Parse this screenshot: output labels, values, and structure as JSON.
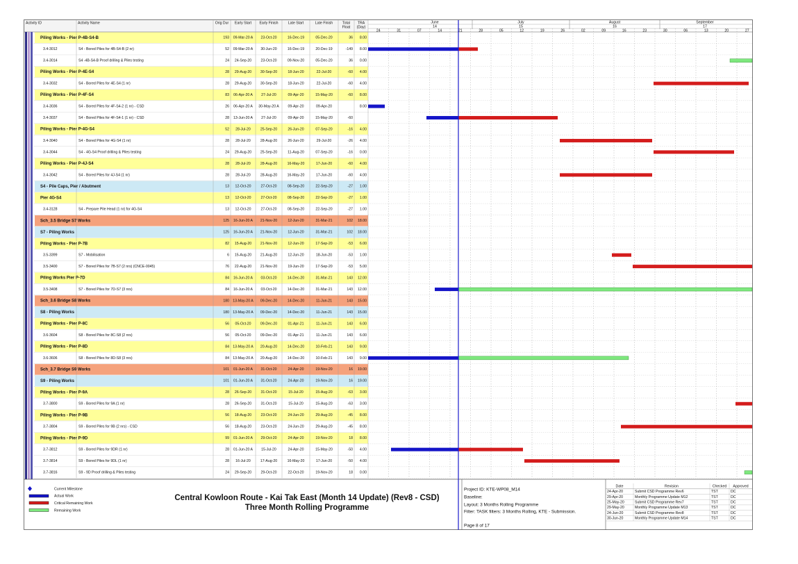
{
  "header": {
    "columns": [
      "Activity ID",
      "Activity Name",
      "Orig Dur",
      "Early Start",
      "Early Finish",
      "Late Start",
      "Late Finish",
      [
        "Total",
        "Float"
      ],
      [
        "TRA",
        "(Day)"
      ]
    ]
  },
  "timescale": {
    "months": [
      {
        "name": "June",
        "week": "14"
      },
      {
        "name": "July",
        "week": "15"
      },
      {
        "name": "August",
        "week": "16"
      },
      {
        "name": "September",
        "week": "17"
      }
    ],
    "days": [
      "24",
      "31",
      "07",
      "14",
      "21",
      "28",
      "05",
      "12",
      "19",
      "26",
      "02",
      "09",
      "16",
      "23",
      "30",
      "06",
      "13",
      "20",
      "27"
    ]
  },
  "table": {
    "rows": [
      {
        "name": "Piling Works - Pier P-4B-S4-B",
        "color": "#ffff99",
        "cells": [
          193,
          "09-Mar-20 A",
          "23-Oct-20",
          "16-Dec-19",
          "05-Dec-20",
          36,
          "8.00"
        ]
      },
      {
        "id": "3.4-3012",
        "name": "S4 - Bored Piles for 4B-S4-B (2 nr)",
        "cells": [
          52,
          "09-Mar-20 A",
          "30-Jun-20",
          "16-Dec-19",
          "20-Dec-19",
          -149,
          "8.00"
        ]
      },
      {
        "id": "3.4-3014",
        "name": "S4 -4B-S4-B Proof drilling & Piles testing",
        "cells": [
          24,
          "24-Sep-20",
          "23-Oct-20",
          "09-Nov-20",
          "05-Dec-20",
          36,
          "0.00"
        ]
      },
      {
        "name": "Piling Works - Pier P-4E-S4",
        "color": "#ffff99",
        "cells": [
          28,
          "29-Aug-20",
          "30-Sep-20",
          "18-Jun-20",
          "22-Jul-20",
          -60,
          "4.00"
        ]
      },
      {
        "id": "3.4-3032",
        "name": "S4 - Bored Piles for 4E-S4 (1 nr)",
        "cells": [
          28,
          "29-Aug-20",
          "30-Sep-20",
          "18-Jun-20",
          "22-Jul-20",
          -60,
          "4.00"
        ]
      },
      {
        "name": "Piling Works - Pier P-4F-S4",
        "color": "#ffff99",
        "cells": [
          83,
          "06-Apr-20 A",
          "27-Jul-20",
          "09-Apr-20",
          "15-May-20",
          -60,
          "8.00"
        ]
      },
      {
        "id": "3.4-3036",
        "name": "S4 - Bored Piles for 4F-S4-2 (1 nr) - CSD",
        "cells": [
          26,
          "06-Apr-20 A",
          "30-May-20 A",
          "09-Apr-20",
          "09-Apr-20",
          null,
          "8.00"
        ]
      },
      {
        "id": "3.4-3037",
        "name": "S4 - Bored Piles for 4F-S4-1 (1 nr) - CSD",
        "cells": [
          28,
          "13-Jun-20 A",
          "27-Jul-20",
          "09-Apr-20",
          "15-May-20",
          -60,
          null
        ]
      },
      {
        "name": "Piling Works - Pier P-4G-S4",
        "color": "#ffff99",
        "cells": [
          52,
          "28-Jul-20",
          "25-Sep-20",
          "26-Jun-20",
          "07-Sep-20",
          -16,
          "4.00"
        ]
      },
      {
        "id": "3.4-3040",
        "name": "S4 - Bored Piles for 4G-S4 (1 nr)",
        "cells": [
          28,
          "28-Jul-20",
          "28-Aug-20",
          "26-Jun-20",
          "29-Jul-20",
          -26,
          "4.00"
        ]
      },
      {
        "id": "3.4-3044",
        "name": "S4 - 4G-S4 Proof drilling & Piles testing",
        "cells": [
          24,
          "29-Aug-20",
          "25-Sep-20",
          "11-Aug-20",
          "07-Sep-20",
          -16,
          "0.00"
        ]
      },
      {
        "name": "Piling Works - Pier P-4J-S4",
        "color": "#ffff99",
        "cells": [
          28,
          "28-Jul-20",
          "28-Aug-20",
          "16-May-20",
          "17-Jun-20",
          -60,
          "4.00"
        ]
      },
      {
        "id": "3.4-3042",
        "name": "S4 - Bored Piles for 4J-S4 (1 nr)",
        "cells": [
          28,
          "28-Jul-20",
          "28-Aug-20",
          "16-May-20",
          "17-Jun-20",
          -60,
          "4.00"
        ]
      },
      {
        "name": "S4 - Pile Caps, Pier / Abutment",
        "color": "#cde9f5",
        "cells": [
          13,
          "12-Oct-20",
          "27-Oct-20",
          "08-Sep-20",
          "22-Sep-20",
          -27,
          "1.00"
        ]
      },
      {
        "name": "Pier 4G-S4",
        "color": "#ffff99",
        "cells": [
          13,
          "12-Oct-20",
          "27-Oct-20",
          "08-Sep-20",
          "22-Sep-20",
          -27,
          "1.00"
        ]
      },
      {
        "id": "3.4-3128",
        "name": "S4 - Prepare Pile Head (1 nr) for 4G-S4",
        "cells": [
          13,
          "12-Oct-20",
          "27-Oct-20",
          "08-Sep-20",
          "22-Sep-20",
          -27,
          "1.00"
        ]
      },
      {
        "name": "Sch_3.5 Bridge S7 Works",
        "color": "#f5a27c",
        "cells": [
          125,
          "16-Jun-20 A",
          "21-Nov-20",
          "12-Jun-20",
          "31-Mar-21",
          102,
          "18.00"
        ]
      },
      {
        "name": "S7 - Piling Works",
        "color": "#cde9f5",
        "cells": [
          125,
          "16-Jun-20 A",
          "21-Nov-20",
          "12-Jun-20",
          "31-Mar-21",
          102,
          "18.00"
        ]
      },
      {
        "name": "Piling Works - Pier P-7B",
        "color": "#ffff99",
        "cells": [
          82,
          "15-Aug-20",
          "21-Nov-20",
          "12-Jun-20",
          "17-Sep-20",
          -53,
          "6.00"
        ]
      },
      {
        "id": "3.5-3399",
        "name": "S7 - Mobilisation",
        "cells": [
          6,
          "15-Aug-20",
          "21-Aug-20",
          "12-Jun-20",
          "18-Jun-20",
          -53,
          "1.00"
        ]
      },
      {
        "id": "3.5-3400",
        "name": "S7 - Bored Piles for 7B-S7 (2 nrs) (CNCE-0045)",
        "cells": [
          76,
          "22-Aug-20",
          "21-Nov-20",
          "19-Jun-20",
          "17-Sep-20",
          -53,
          "5.00"
        ]
      },
      {
        "name": "Piling Works Pier P-7D",
        "color": "#ffff99",
        "cells": [
          84,
          "16-Jun-20 A",
          "03-Oct-20",
          "14-Dec-20",
          "31-Mar-21",
          143,
          "12.00"
        ]
      },
      {
        "id": "3.5-3408",
        "name": "S7 - Bored Piles for 7D-S7 (3 nrs)",
        "cells": [
          84,
          "16-Jun-20 A",
          "03-Oct-20",
          "14-Dec-20",
          "31-Mar-21",
          143,
          "12.00"
        ]
      },
      {
        "name": "Sch_3.6 Bridge S8 Works",
        "color": "#f5a27c",
        "cells": [
          180,
          "13-May-20 A",
          "09-Dec-20",
          "14-Dec-20",
          "11-Jun-21",
          143,
          "15.00"
        ]
      },
      {
        "name": "S8 - Piling Works",
        "color": "#cde9f5",
        "cells": [
          180,
          "13-May-20 A",
          "09-Dec-20",
          "14-Dec-20",
          "11-Jun-21",
          143,
          "15.00"
        ]
      },
      {
        "name": "Piling Works - Pier P-8C",
        "color": "#ffff99",
        "cells": [
          56,
          "05-Oct-20",
          "09-Dec-20",
          "01-Apr-21",
          "11-Jun-21",
          143,
          "6.00"
        ]
      },
      {
        "id": "3.6-3604",
        "name": "S8 - Bored Piles for 8C-S8 (2 nrs)",
        "cells": [
          56,
          "05-Oct-20",
          "09-Dec-20",
          "01-Apr-21",
          "11-Jun-21",
          143,
          "6.00"
        ]
      },
      {
        "name": "Piling Works - Pier P-8D",
        "color": "#ffff99",
        "cells": [
          84,
          "13-May-20 A",
          "20-Aug-20",
          "14-Dec-20",
          "10-Feb-21",
          143,
          "9.00"
        ]
      },
      {
        "id": "3.6-3606",
        "name": "S8 - Bored Piles for 8D-S8 (3 nrs)",
        "cells": [
          84,
          "13-May-20 A",
          "20-Aug-20",
          "14-Dec-20",
          "10-Feb-21",
          143,
          "9.00"
        ]
      },
      {
        "name": "Sch_3.7 Bridge S9 Works",
        "color": "#f5a27c",
        "cells": [
          101,
          "01-Jun-20 A",
          "31-Oct-20",
          "24-Apr-20",
          "19-Nov-20",
          16,
          "19.00"
        ]
      },
      {
        "name": "S9 - Piling Works",
        "color": "#cde9f5",
        "cells": [
          101,
          "01-Jun-20 A",
          "31-Oct-20",
          "24-Apr-20",
          "19-Nov-20",
          16,
          "19.00"
        ]
      },
      {
        "name": "Piling Works - Pier P-9A",
        "color": "#ffff99",
        "cells": [
          28,
          "26-Sep-20",
          "31-Oct-20",
          "15-Jul-20",
          "15-Aug-20",
          -63,
          "3.00"
        ]
      },
      {
        "id": "3.7-3800",
        "name": "S9 - Bored Piles for 9A (1 nr)",
        "cells": [
          28,
          "26-Sep-20",
          "31-Oct-20",
          "15-Jul-20",
          "15-Aug-20",
          -63,
          "3.00"
        ]
      },
      {
        "name": "Piling Works - Pier P-9B",
        "color": "#ffff99",
        "cells": [
          56,
          "18-Aug-20",
          "23-Oct-20",
          "24-Jun-20",
          "29-Aug-20",
          -45,
          "8.00"
        ]
      },
      {
        "id": "3.7-3804",
        "name": "S9 - Bored Piles for 9B (2 nrs) - CSD",
        "cells": [
          56,
          "18-Aug-20",
          "23-Oct-20",
          "24-Jun-20",
          "29-Aug-20",
          -45,
          "8.00"
        ]
      },
      {
        "name": "Piling Works - Pier P-9D",
        "color": "#ffff99",
        "cells": [
          99,
          "01-Jun-20 A",
          "29-Oct-20",
          "24-Apr-20",
          "19-Nov-20",
          18,
          "8.00"
        ]
      },
      {
        "id": "3.7-3812",
        "name": "S9 - Bored Piles for 9DR (1 nr)",
        "cells": [
          28,
          "01-Jun-20 A",
          "15-Jul-20",
          "24-Apr-20",
          "15-May-20",
          -50,
          "4.00"
        ]
      },
      {
        "id": "3.7-3814",
        "name": "S9 - Bored Piles for 9DL (1 nr)",
        "cells": [
          28,
          "16-Jul-20",
          "17-Aug-20",
          "16-May-20",
          "17-Jun-20",
          -50,
          "4.00"
        ]
      },
      {
        "id": "3.7-3816",
        "name": "S9 - 9D Proof drilling & Piles testing",
        "cells": [
          24,
          "29-Sep-20",
          "29-Oct-20",
          "22-Oct-20",
          "19-Nov-20",
          18,
          "0.00"
        ]
      }
    ]
  },
  "legend": [
    "Current Milestone",
    "Actual Work",
    "Critical Remaining Work",
    "Remaining Work"
  ],
  "title": {
    "line1": "Central Kowloon Route - Kai Tak East (Month 14 Update) (Rev8 - CSD)",
    "line2": "Three Month Rolling Programme"
  },
  "project": {
    "id": "Project ID: KTE-WP08_M14",
    "baseline": "Baseline:",
    "layout": "Layout: 3 Months Rolling Programme",
    "filter": "Filter: TASK filters: 3 Months Rolling, KTE - Submission.",
    "page": "Page 8 of 17"
  },
  "revisions": {
    "columns": [
      "Date",
      "Revision",
      "Checked",
      "Approved"
    ],
    "rows": [
      [
        "24-Apr-20",
        "Submit CSD Programme Rev6",
        "TST",
        "DC"
      ],
      [
        "29-Apr-20",
        "Monthly Programme Update M12",
        "TST",
        "DC"
      ],
      [
        "25-May-20",
        "Submit CSD Programme Rev7",
        "TST",
        "DC"
      ],
      [
        "29-May-20",
        "Monthly Programme Update M13",
        "TST",
        "DC"
      ],
      [
        "24-Jun-20",
        "Submit CSD Programme Rev8",
        "TST",
        "DC"
      ],
      [
        "30-Jun-20",
        "Monthly Programme Update M14",
        "TST",
        "DC"
      ]
    ]
  }
}
